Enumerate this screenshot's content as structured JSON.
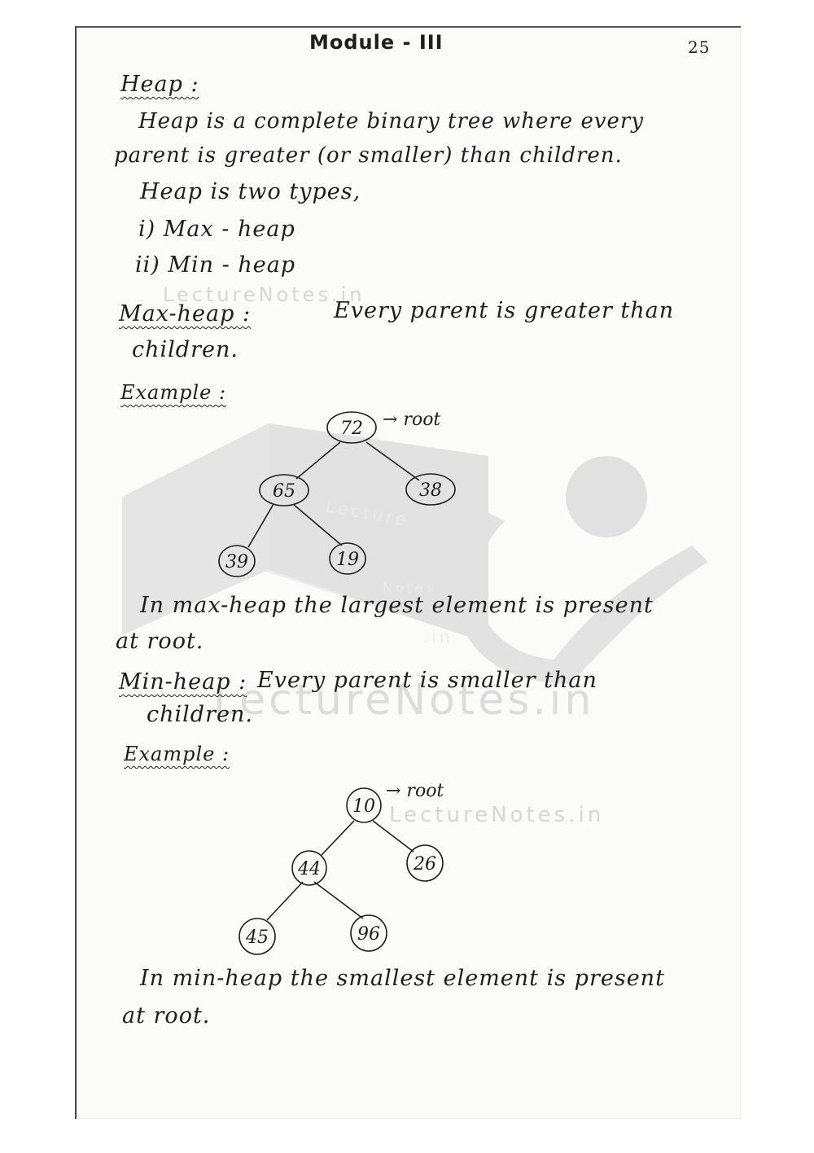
{
  "header": {
    "title": "Module - III",
    "page_number": "25"
  },
  "heap": {
    "heading": "Heap :",
    "def_line1": "Heap is a complete binary tree where every",
    "def_line2": "parent is greater (or smaller) than children.",
    "types_intro": "Heap is two types,",
    "type1": "i) Max - heap",
    "type2": "ii) Min - heap"
  },
  "max_heap": {
    "heading": "Max-heap :",
    "def_line1": "Every parent is greater than",
    "def_line2": "children.",
    "example_heading": "Example :",
    "root_label": "→ root",
    "nodes": [
      "72",
      "65",
      "38",
      "39",
      "19"
    ],
    "summary_line1": "In max-heap the largest element is present",
    "summary_line2": "at root."
  },
  "min_heap": {
    "heading": "Min-heap :",
    "def_line1": "Every parent is smaller than",
    "def_line2": "children.",
    "example_heading": "Example :",
    "root_label": "→ root",
    "nodes": [
      "10",
      "44",
      "26",
      "45",
      "96"
    ],
    "summary_line1": "In min-heap the smallest element is present",
    "summary_line2": "at root."
  },
  "watermarks": {
    "text1": "LectureNotes.in",
    "text2": "LectureNotes.in",
    "text3": "LectureNotes.in",
    "logo_text1": "Lecture",
    "logo_text2": "Notes",
    "logo_text3": ".in"
  },
  "colors": {
    "ink": "#1e1e1e",
    "paper": "#fbfbfa",
    "watermark": "#d6d6d6"
  }
}
